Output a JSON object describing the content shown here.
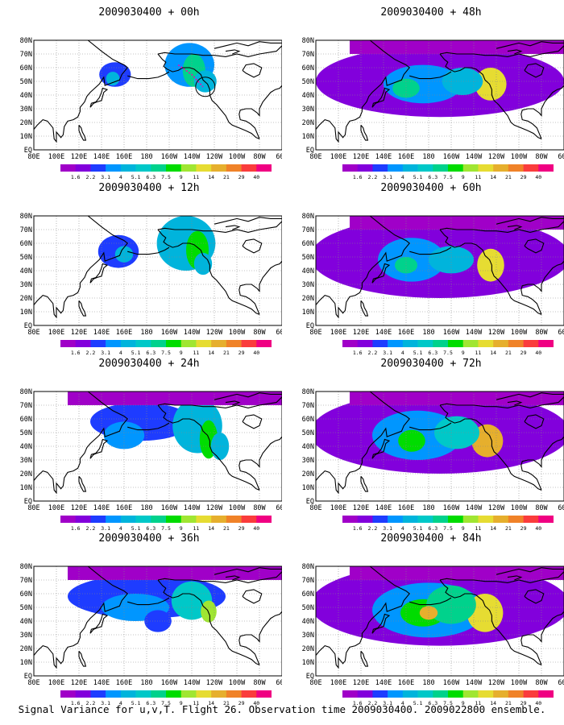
{
  "footer_caption": "Signal Variance for u,v,T. Flight 26. Observation time 2009030400. 2009022800 ensemble.",
  "chart_data": {
    "type": "heatmap",
    "title": "2009030400 + Nh signal variance maps",
    "x_tick_labels": [
      "80E",
      "100E",
      "120E",
      "140E",
      "160E",
      "180",
      "160W",
      "140W",
      "120W",
      "100W",
      "80W",
      "60W"
    ],
    "y_tick_labels": [
      "EQ",
      "10N",
      "20N",
      "30N",
      "40N",
      "50N",
      "60N",
      "70N",
      "80N"
    ],
    "xlim": [
      "80E",
      "60W"
    ],
    "ylim": [
      "EQ",
      "80N"
    ],
    "grid": true,
    "colorbar": {
      "levels": [
        "1.6",
        "2.2",
        "3.1",
        "4",
        "5.1",
        "6.3",
        "7.5",
        "9",
        "11",
        "14",
        "21",
        "29",
        "40"
      ],
      "colors": [
        "#a000c8",
        "#8200dc",
        "#1e3cff",
        "#0096ff",
        "#00b4dc",
        "#00c8c8",
        "#00d28c",
        "#00dc00",
        "#a0e632",
        "#e6dc32",
        "#e6af2d",
        "#f08228",
        "#fa3c3c",
        "#f00082"
      ]
    },
    "panels": [
      {
        "title": "2009030400 + 00h",
        "lead_hours": 0,
        "peak_level": "6.3"
      },
      {
        "title": "2009030400 + 12h",
        "lead_hours": 12,
        "peak_level": "9"
      },
      {
        "title": "2009030400 + 24h",
        "lead_hours": 24,
        "peak_level": "9"
      },
      {
        "title": "2009030400 + 36h",
        "lead_hours": 36,
        "peak_level": "11"
      },
      {
        "title": "2009030400 + 48h",
        "lead_hours": 48,
        "peak_level": "14"
      },
      {
        "title": "2009030400 + 60h",
        "lead_hours": 60,
        "peak_level": "14"
      },
      {
        "title": "2009030400 + 72h",
        "lead_hours": 72,
        "peak_level": "14"
      },
      {
        "title": "2009030400 + 84h",
        "lead_hours": 84,
        "peak_level": "14"
      }
    ]
  }
}
